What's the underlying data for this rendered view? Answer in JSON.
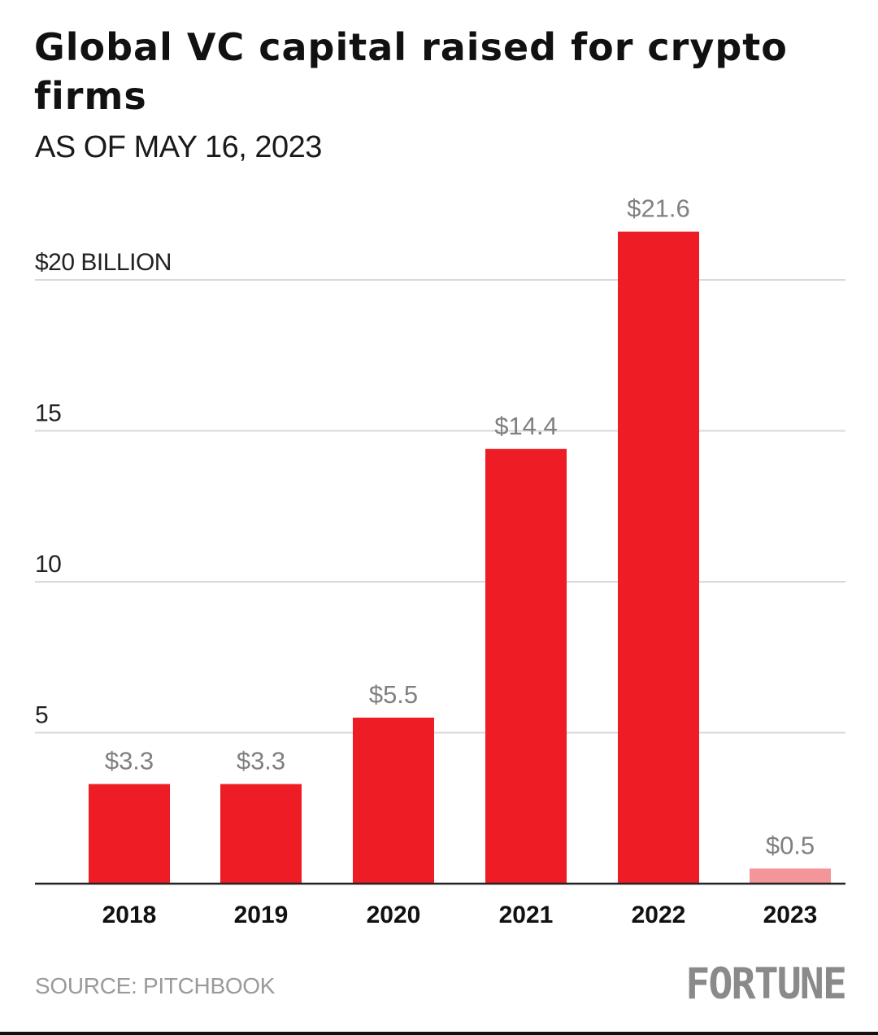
{
  "header": {
    "title": "Global VC capital raised for crypto firms",
    "subtitle": "AS OF MAY 16, 2023"
  },
  "footer": {
    "source": "SOURCE: PITCHBOOK",
    "brand": "FORTUNE"
  },
  "colors": {
    "bar": "#ee1c24",
    "bar_partial": "#f4959a",
    "grid": "#d9d9d9",
    "axis": "#222222",
    "data_label": "#808080"
  },
  "chart_data": {
    "type": "bar",
    "title": "Global VC capital raised for crypto firms",
    "subtitle": "AS OF MAY 16, 2023",
    "categories": [
      "2018",
      "2019",
      "2020",
      "2021",
      "2022",
      "2023"
    ],
    "values": [
      3.3,
      3.3,
      5.5,
      14.4,
      21.6,
      0.5
    ],
    "data_labels": [
      "$3.3",
      "$3.3",
      "$5.5",
      "$14.4",
      "$21.6",
      "$0.5"
    ],
    "partial_year": "2023",
    "y_ticks": [
      5,
      10,
      15,
      20
    ],
    "y_tick_labels": [
      "5",
      "10",
      "15",
      "$20 BILLION"
    ],
    "ylim": [
      0,
      22
    ],
    "grid": true,
    "legend": "none",
    "source": "SOURCE: PITCHBOOK"
  }
}
